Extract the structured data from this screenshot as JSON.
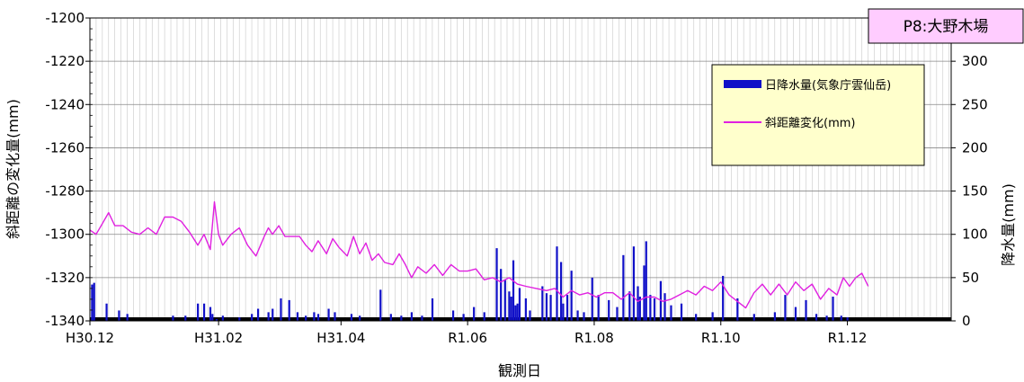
{
  "chart_data": {
    "type": "bar+line",
    "title": "P8:大野木場",
    "xlabel": "観測日",
    "ylabel_left": "斜距離の変化量(mm)",
    "ylabel_right": "降水量(mm)",
    "x_ticks": [
      "H30.12",
      "H31.02",
      "H31.04",
      "R1.06",
      "R1.08",
      "R1.10",
      "R1.12"
    ],
    "x_tick_days": [
      0,
      62,
      121,
      182,
      243,
      304,
      365
    ],
    "x_range_days": [
      0,
      415
    ],
    "y_left_ticks": [
      "-1200",
      "-1220",
      "-1240",
      "-1260",
      "-1280",
      "-1300",
      "-1320",
      "-1340"
    ],
    "y_left_range": [
      -1340,
      -1200
    ],
    "y_right_ticks": [
      "0",
      "50",
      "100",
      "150",
      "200",
      "250",
      "300"
    ],
    "y_right_range": [
      0,
      350
    ],
    "grid": true,
    "legend_position": "top-right",
    "colors": {
      "rain": "#1010c8",
      "distance": "#e020e0",
      "title_bg": "#ffccff",
      "legend_bg": "#ffffcc"
    },
    "series": [
      {
        "name": "日降水量(気象庁雲仙岳)",
        "kind": "bar",
        "axis": "right",
        "points": [
          [
            1,
            42
          ],
          [
            2,
            44
          ],
          [
            8,
            20
          ],
          [
            14,
            12
          ],
          [
            18,
            8
          ],
          [
            40,
            6
          ],
          [
            46,
            6
          ],
          [
            52,
            20
          ],
          [
            55,
            20
          ],
          [
            58,
            16
          ],
          [
            59,
            8
          ],
          [
            61,
            2
          ],
          [
            64,
            6
          ],
          [
            72,
            4
          ],
          [
            78,
            8
          ],
          [
            81,
            14
          ],
          [
            86,
            10
          ],
          [
            88,
            14
          ],
          [
            92,
            26
          ],
          [
            96,
            24
          ],
          [
            100,
            10
          ],
          [
            104,
            6
          ],
          [
            108,
            10
          ],
          [
            110,
            8
          ],
          [
            115,
            14
          ],
          [
            118,
            10
          ],
          [
            126,
            8
          ],
          [
            130,
            6
          ],
          [
            140,
            36
          ],
          [
            145,
            8
          ],
          [
            150,
            6
          ],
          [
            155,
            10
          ],
          [
            160,
            6
          ],
          [
            165,
            26
          ],
          [
            175,
            12
          ],
          [
            180,
            8
          ],
          [
            185,
            16
          ],
          [
            190,
            10
          ],
          [
            196,
            84
          ],
          [
            198,
            60
          ],
          [
            200,
            48
          ],
          [
            202,
            34
          ],
          [
            203,
            28
          ],
          [
            204,
            70
          ],
          [
            205,
            18
          ],
          [
            206,
            20
          ],
          [
            207,
            38
          ],
          [
            210,
            26
          ],
          [
            212,
            12
          ],
          [
            218,
            40
          ],
          [
            220,
            32
          ],
          [
            222,
            30
          ],
          [
            225,
            86
          ],
          [
            227,
            68
          ],
          [
            228,
            20
          ],
          [
            230,
            30
          ],
          [
            232,
            58
          ],
          [
            235,
            12
          ],
          [
            238,
            10
          ],
          [
            242,
            50
          ],
          [
            245,
            30
          ],
          [
            250,
            24
          ],
          [
            254,
            16
          ],
          [
            257,
            76
          ],
          [
            260,
            34
          ],
          [
            262,
            86
          ],
          [
            264,
            40
          ],
          [
            265,
            28
          ],
          [
            267,
            64
          ],
          [
            268,
            92
          ],
          [
            270,
            30
          ],
          [
            272,
            26
          ],
          [
            275,
            46
          ],
          [
            277,
            32
          ],
          [
            280,
            18
          ],
          [
            285,
            20
          ],
          [
            292,
            8
          ],
          [
            300,
            10
          ],
          [
            305,
            52
          ],
          [
            312,
            26
          ],
          [
            320,
            8
          ],
          [
            330,
            10
          ],
          [
            335,
            30
          ],
          [
            340,
            16
          ],
          [
            345,
            24
          ],
          [
            350,
            8
          ],
          [
            355,
            6
          ],
          [
            358,
            28
          ],
          [
            362,
            6
          ],
          [
            365,
            4
          ]
        ]
      },
      {
        "name": "斜距離変化(mm)",
        "kind": "line",
        "axis": "left",
        "points": [
          [
            0,
            -1298
          ],
          [
            3,
            -1300
          ],
          [
            6,
            -1295
          ],
          [
            9,
            -1290
          ],
          [
            12,
            -1296
          ],
          [
            16,
            -1296
          ],
          [
            20,
            -1299
          ],
          [
            24,
            -1300
          ],
          [
            28,
            -1297
          ],
          [
            32,
            -1300
          ],
          [
            36,
            -1292
          ],
          [
            40,
            -1292
          ],
          [
            44,
            -1294
          ],
          [
            48,
            -1299
          ],
          [
            52,
            -1305
          ],
          [
            55,
            -1300
          ],
          [
            58,
            -1307
          ],
          [
            60,
            -1285
          ],
          [
            62,
            -1300
          ],
          [
            64,
            -1305
          ],
          [
            68,
            -1300
          ],
          [
            72,
            -1297
          ],
          [
            76,
            -1305
          ],
          [
            80,
            -1310
          ],
          [
            84,
            -1301
          ],
          [
            86,
            -1297
          ],
          [
            88,
            -1300
          ],
          [
            91,
            -1296
          ],
          [
            94,
            -1301
          ],
          [
            98,
            -1301
          ],
          [
            101,
            -1301
          ],
          [
            104,
            -1305
          ],
          [
            107,
            -1308
          ],
          [
            110,
            -1303
          ],
          [
            114,
            -1309
          ],
          [
            117,
            -1302
          ],
          [
            120,
            -1306
          ],
          [
            124,
            -1310
          ],
          [
            127,
            -1301
          ],
          [
            130,
            -1309
          ],
          [
            133,
            -1304
          ],
          [
            136,
            -1312
          ],
          [
            139,
            -1309
          ],
          [
            142,
            -1313
          ],
          [
            146,
            -1314
          ],
          [
            149,
            -1309
          ],
          [
            152,
            -1314
          ],
          [
            155,
            -1320
          ],
          [
            158,
            -1315
          ],
          [
            162,
            -1318
          ],
          [
            166,
            -1314
          ],
          [
            170,
            -1319
          ],
          [
            174,
            -1314
          ],
          [
            178,
            -1317
          ],
          [
            182,
            -1317
          ],
          [
            186,
            -1316
          ],
          [
            190,
            -1321
          ],
          [
            194,
            -1320
          ],
          [
            198,
            -1322
          ],
          [
            202,
            -1320
          ],
          [
            206,
            -1323
          ],
          [
            210,
            -1324
          ],
          [
            215,
            -1325
          ],
          [
            220,
            -1326
          ],
          [
            224,
            -1325
          ],
          [
            228,
            -1329
          ],
          [
            232,
            -1326
          ],
          [
            236,
            -1328
          ],
          [
            240,
            -1327
          ],
          [
            244,
            -1329
          ],
          [
            248,
            -1327
          ],
          [
            252,
            -1327
          ],
          [
            256,
            -1330
          ],
          [
            260,
            -1327
          ],
          [
            264,
            -1331
          ],
          [
            268,
            -1329
          ],
          [
            272,
            -1329
          ],
          [
            276,
            -1331
          ],
          [
            280,
            -1330
          ],
          [
            284,
            -1328
          ],
          [
            288,
            -1326
          ],
          [
            292,
            -1328
          ],
          [
            296,
            -1324
          ],
          [
            300,
            -1326
          ],
          [
            304,
            -1322
          ],
          [
            308,
            -1328
          ],
          [
            312,
            -1331
          ],
          [
            316,
            -1334
          ],
          [
            320,
            -1327
          ],
          [
            324,
            -1323
          ],
          [
            328,
            -1328
          ],
          [
            332,
            -1323
          ],
          [
            336,
            -1328
          ],
          [
            340,
            -1322
          ],
          [
            344,
            -1326
          ],
          [
            348,
            -1323
          ],
          [
            352,
            -1330
          ],
          [
            356,
            -1325
          ],
          [
            360,
            -1328
          ],
          [
            363,
            -1320
          ],
          [
            366,
            -1324
          ],
          [
            369,
            -1320
          ],
          [
            372,
            -1318
          ],
          [
            375,
            -1324
          ]
        ]
      }
    ]
  }
}
